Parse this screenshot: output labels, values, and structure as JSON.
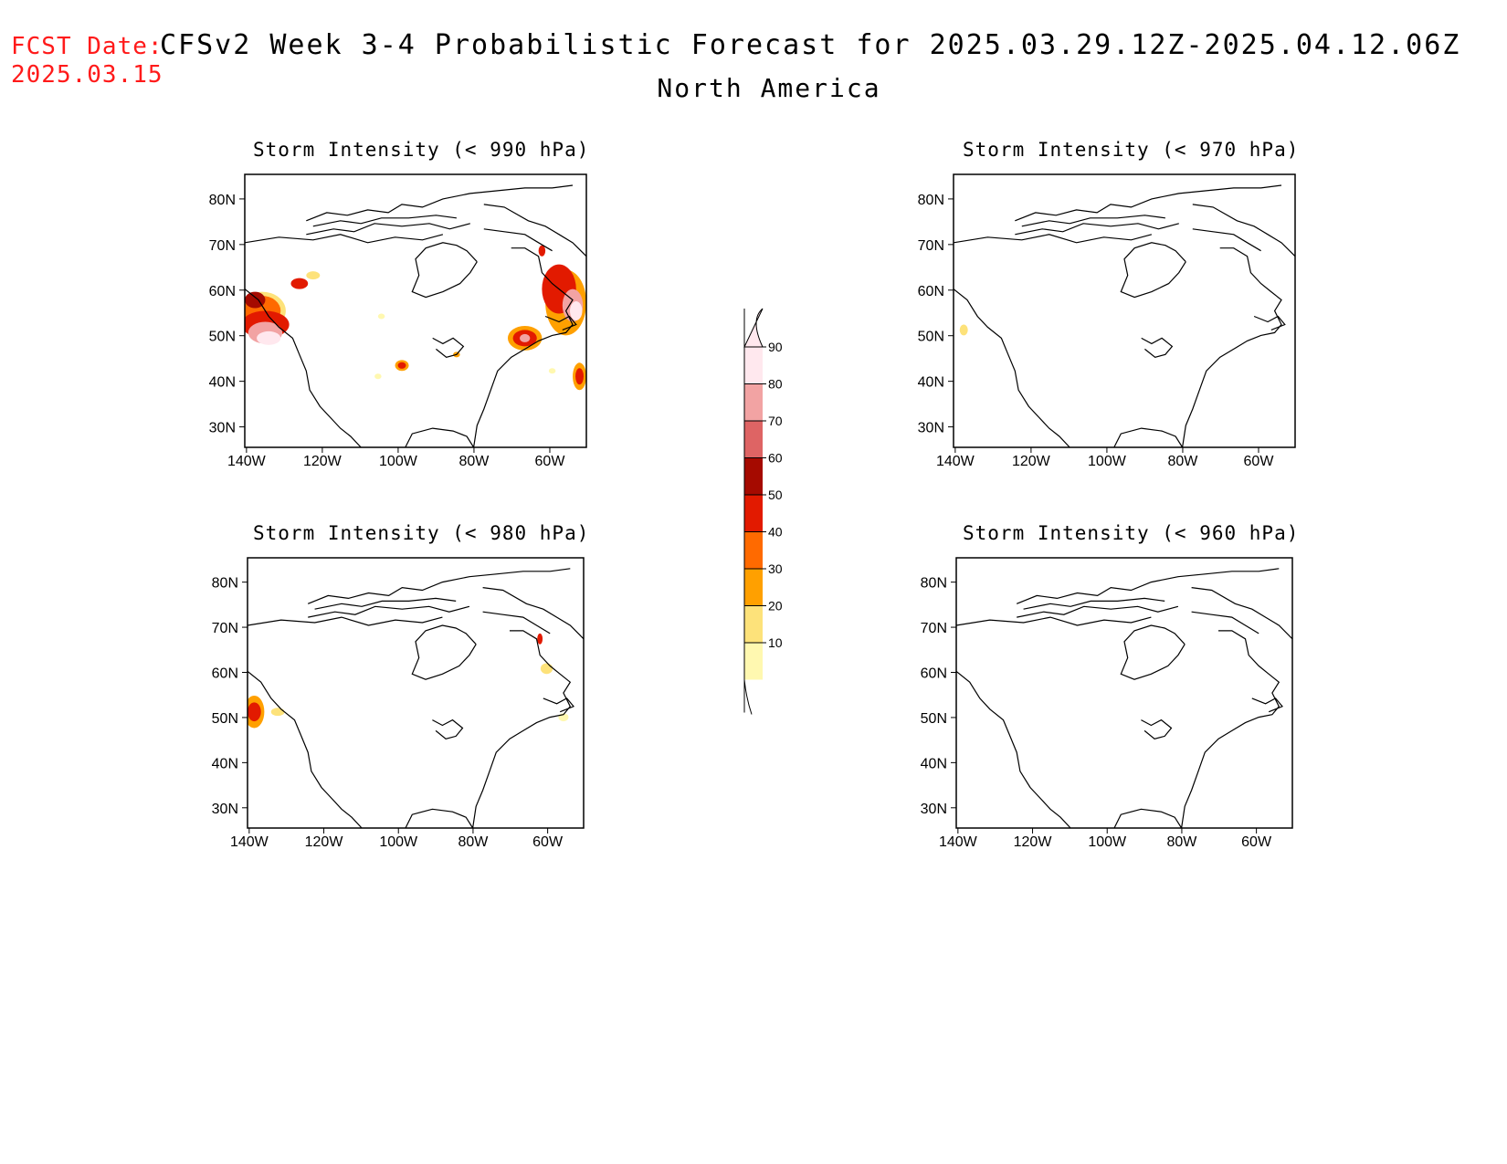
{
  "header": {
    "fcst_label": "FCST Date:",
    "fcst_date": "2025.03.15",
    "title": "CFSv2 Week 3-4 Probabilistic Forecast for 2025.03.29.12Z-2025.04.12.06Z",
    "region": "North America"
  },
  "panels": [
    {
      "title": "Storm Intensity (< 990 hPa)"
    },
    {
      "title": "Storm Intensity (< 970 hPa)"
    },
    {
      "title": "Storm Intensity (< 980 hPa)"
    },
    {
      "title": "Storm Intensity (< 960 hPa)"
    }
  ],
  "axes": {
    "lat_labels": [
      "80N",
      "70N",
      "60N",
      "50N",
      "40N",
      "30N"
    ],
    "lon_labels": [
      "140W",
      "120W",
      "100W",
      "80W",
      "60W"
    ]
  },
  "colorbar": {
    "levels": [
      "10",
      "20",
      "30",
      "40",
      "50",
      "60",
      "70",
      "80",
      "90"
    ],
    "colors": [
      "#fff8b0",
      "#fde27a",
      "#ffa000",
      "#ff6a00",
      "#e21a00",
      "#a50a00",
      "#de6464",
      "#f2a3a3",
      "#ffe8ee"
    ]
  }
}
